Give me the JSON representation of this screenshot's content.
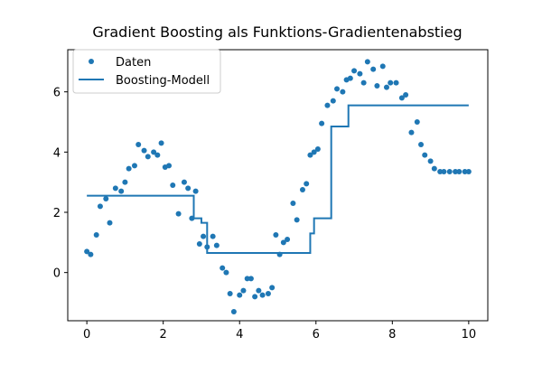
{
  "chart_data": {
    "type": "scatter",
    "title": "Gradient Boosting als Funktions-Gradientenabstieg",
    "xlabel": "",
    "ylabel": "",
    "xlim": [
      -0.5,
      10.5
    ],
    "ylim": [
      -1.6,
      7.4
    ],
    "xticks": [
      "0",
      "2",
      "4",
      "6",
      "8",
      "10"
    ],
    "yticks": [
      "0",
      "2",
      "4",
      "6"
    ],
    "xtick_values": [
      0,
      2,
      4,
      6,
      8,
      10
    ],
    "ytick_values": [
      0,
      2,
      4,
      6
    ],
    "grid": false,
    "legend_position": "top-left",
    "series": [
      {
        "name": "Daten",
        "kind": "scatter",
        "color": "#1f77b4",
        "x": [
          0,
          0.1,
          0.25,
          0.35,
          0.5,
          0.6,
          0.75,
          0.9,
          1.0,
          1.1,
          1.25,
          1.35,
          1.5,
          1.6,
          1.75,
          1.85,
          1.95,
          2.05,
          2.15,
          2.25,
          2.4,
          2.55,
          2.65,
          2.75,
          2.85,
          2.95,
          3.05,
          3.15,
          3.3,
          3.4,
          3.55,
          3.65,
          3.75,
          3.85,
          4.0,
          4.1,
          4.2,
          4.3,
          4.4,
          4.5,
          4.6,
          4.75,
          4.85,
          4.95,
          5.05,
          5.15,
          5.25,
          5.4,
          5.5,
          5.65,
          5.75,
          5.85,
          5.95,
          6.05,
          6.15,
          6.3,
          6.45,
          6.55,
          6.7,
          6.8,
          6.9,
          7.0,
          7.15,
          7.25,
          7.35,
          7.5,
          7.6,
          7.75,
          7.85,
          7.95,
          8.1,
          8.25,
          8.35,
          8.5,
          8.65,
          8.75,
          8.85,
          9.0,
          9.1,
          9.25,
          9.35,
          9.5,
          9.65,
          9.75,
          9.9,
          10.0
        ],
        "y": [
          0.7,
          0.6,
          1.25,
          2.2,
          2.45,
          1.65,
          2.8,
          2.7,
          3.0,
          3.45,
          3.55,
          4.25,
          4.05,
          3.85,
          4.0,
          3.9,
          4.3,
          3.5,
          3.55,
          2.9,
          1.95,
          3.0,
          2.8,
          1.8,
          2.7,
          0.95,
          1.2,
          0.85,
          1.2,
          0.9,
          0.15,
          0.0,
          -0.7,
          -1.3,
          -0.75,
          -0.6,
          -0.2,
          -0.2,
          -0.8,
          -0.6,
          -0.75,
          -0.7,
          -0.5,
          1.25,
          0.6,
          1.0,
          1.1,
          2.3,
          1.75,
          2.75,
          2.95,
          3.9,
          4.0,
          4.1,
          4.95,
          5.55,
          5.7,
          6.1,
          6.0,
          6.4,
          6.45,
          6.7,
          6.6,
          6.3,
          7.0,
          6.75,
          6.2,
          6.85,
          6.15,
          6.3,
          6.3,
          5.8,
          5.9,
          4.65,
          5.0,
          4.25,
          3.9,
          3.7,
          3.45,
          3.35,
          3.35,
          3.35,
          3.35,
          3.35,
          3.35,
          3.35
        ]
      },
      {
        "name": "Boosting-Modell",
        "kind": "step-line",
        "color": "#1f77b4",
        "x": [
          0,
          2.8,
          2.8,
          3.0,
          3.0,
          3.15,
          3.15,
          5.85,
          5.85,
          5.95,
          5.95,
          6.4,
          6.4,
          6.85,
          6.85,
          7.0,
          7.0,
          10.0
        ],
        "y": [
          2.55,
          2.55,
          1.8,
          1.8,
          1.65,
          1.65,
          0.65,
          0.65,
          1.3,
          1.3,
          1.8,
          1.8,
          4.85,
          4.85,
          5.55,
          5.55,
          5.55,
          5.55
        ]
      }
    ]
  }
}
